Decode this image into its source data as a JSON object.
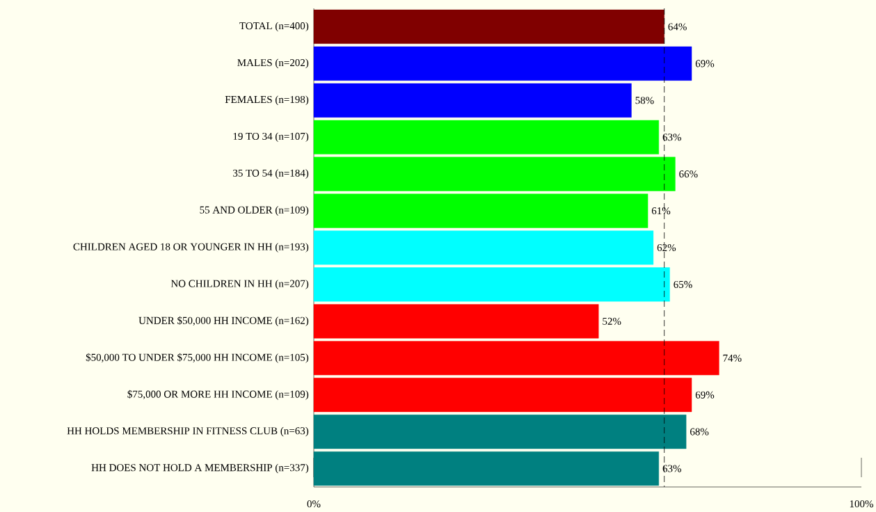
{
  "chart_data": {
    "type": "bar",
    "orientation": "horizontal",
    "categories": [
      "TOTAL (n=400)",
      "MALES (n=202)",
      "FEMALES (n=198)",
      "19 TO 34 (n=107)",
      "35 TO 54 (n=184)",
      "55 AND OLDER (n=109)",
      "CHILDREN AGED 18 OR YOUNGER IN HH (n=193)",
      "NO CHILDREN IN HH (n=207)",
      "UNDER $50,000 HH INCOME (n=162)",
      "$50,000 TO UNDER $75,000 HH INCOME (n=105)",
      "$75,000 OR MORE HH INCOME (n=109)",
      "HH HOLDS MEMBERSHIP IN FITNESS CLUB (n=63)",
      "HH DOES NOT HOLD A MEMBERSHIP (n=337)"
    ],
    "values": [
      64,
      69,
      58,
      63,
      66,
      61,
      62,
      65,
      52,
      74,
      69,
      68,
      63
    ],
    "value_labels": [
      "64%",
      "69%",
      "58%",
      "63%",
      "66%",
      "61%",
      "62%",
      "65%",
      "52%",
      "74%",
      "69%",
      "68%",
      "63%"
    ],
    "colors": [
      "#800000",
      "#0000ff",
      "#0000ff",
      "#00ff00",
      "#00ff00",
      "#00ff00",
      "#00ffff",
      "#00ffff",
      "#ff0000",
      "#ff0000",
      "#ff0000",
      "#008080",
      "#008080"
    ],
    "xlim": [
      0,
      100
    ],
    "xticks": [
      {
        "value": 0,
        "label": "0%"
      },
      {
        "value": 100,
        "label": "100%"
      }
    ],
    "ref_lines": [
      {
        "axis": "x",
        "value": 64,
        "line_style": "dashed",
        "color": "#000000"
      }
    ],
    "grid": false
  }
}
